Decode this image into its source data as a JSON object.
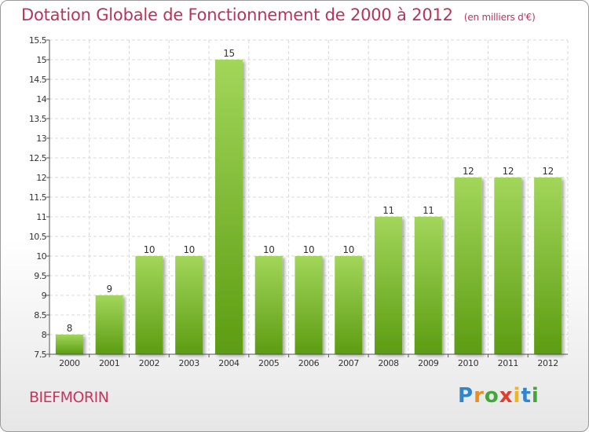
{
  "chart_data": {
    "type": "bar",
    "title": "Dotation Globale de Fonctionnement de 2000 à 2012",
    "subtitle": "(en milliers d'€)",
    "categories": [
      "2000",
      "2001",
      "2002",
      "2003",
      "2004",
      "2005",
      "2006",
      "2007",
      "2008",
      "2009",
      "2010",
      "2011",
      "2012"
    ],
    "values": [
      8,
      9,
      10,
      10,
      15,
      10,
      10,
      10,
      11,
      11,
      12,
      12,
      12
    ],
    "data_labels": [
      "8",
      "9",
      "10",
      "10",
      "15",
      "10",
      "10",
      "10",
      "11",
      "11",
      "12",
      "12",
      "12"
    ],
    "ylim": [
      7.5,
      15.5
    ],
    "yticks": [
      "7.5",
      "8",
      "8.5",
      "9",
      "9.5",
      "10",
      "10.5",
      "11",
      "11.5",
      "12",
      "12.5",
      "13",
      "13.5",
      "14",
      "14.5",
      "15",
      "15.5"
    ],
    "xlabel": "",
    "ylabel": "",
    "grid": true,
    "legend": "none",
    "colors": {
      "bar_top": "#9fd356",
      "bar_bottom": "#5e9e14",
      "title": "#b8345a"
    }
  },
  "commune": "BIEFMORIN",
  "logo": {
    "letters": [
      "P",
      "r",
      "o",
      "x",
      "i",
      "t",
      "i"
    ],
    "colors": [
      "#2f86c9",
      "#f08b1d",
      "#43a63b",
      "#e43b2f",
      "#f0b51d",
      "#2f86c9",
      "#43a63b"
    ]
  }
}
